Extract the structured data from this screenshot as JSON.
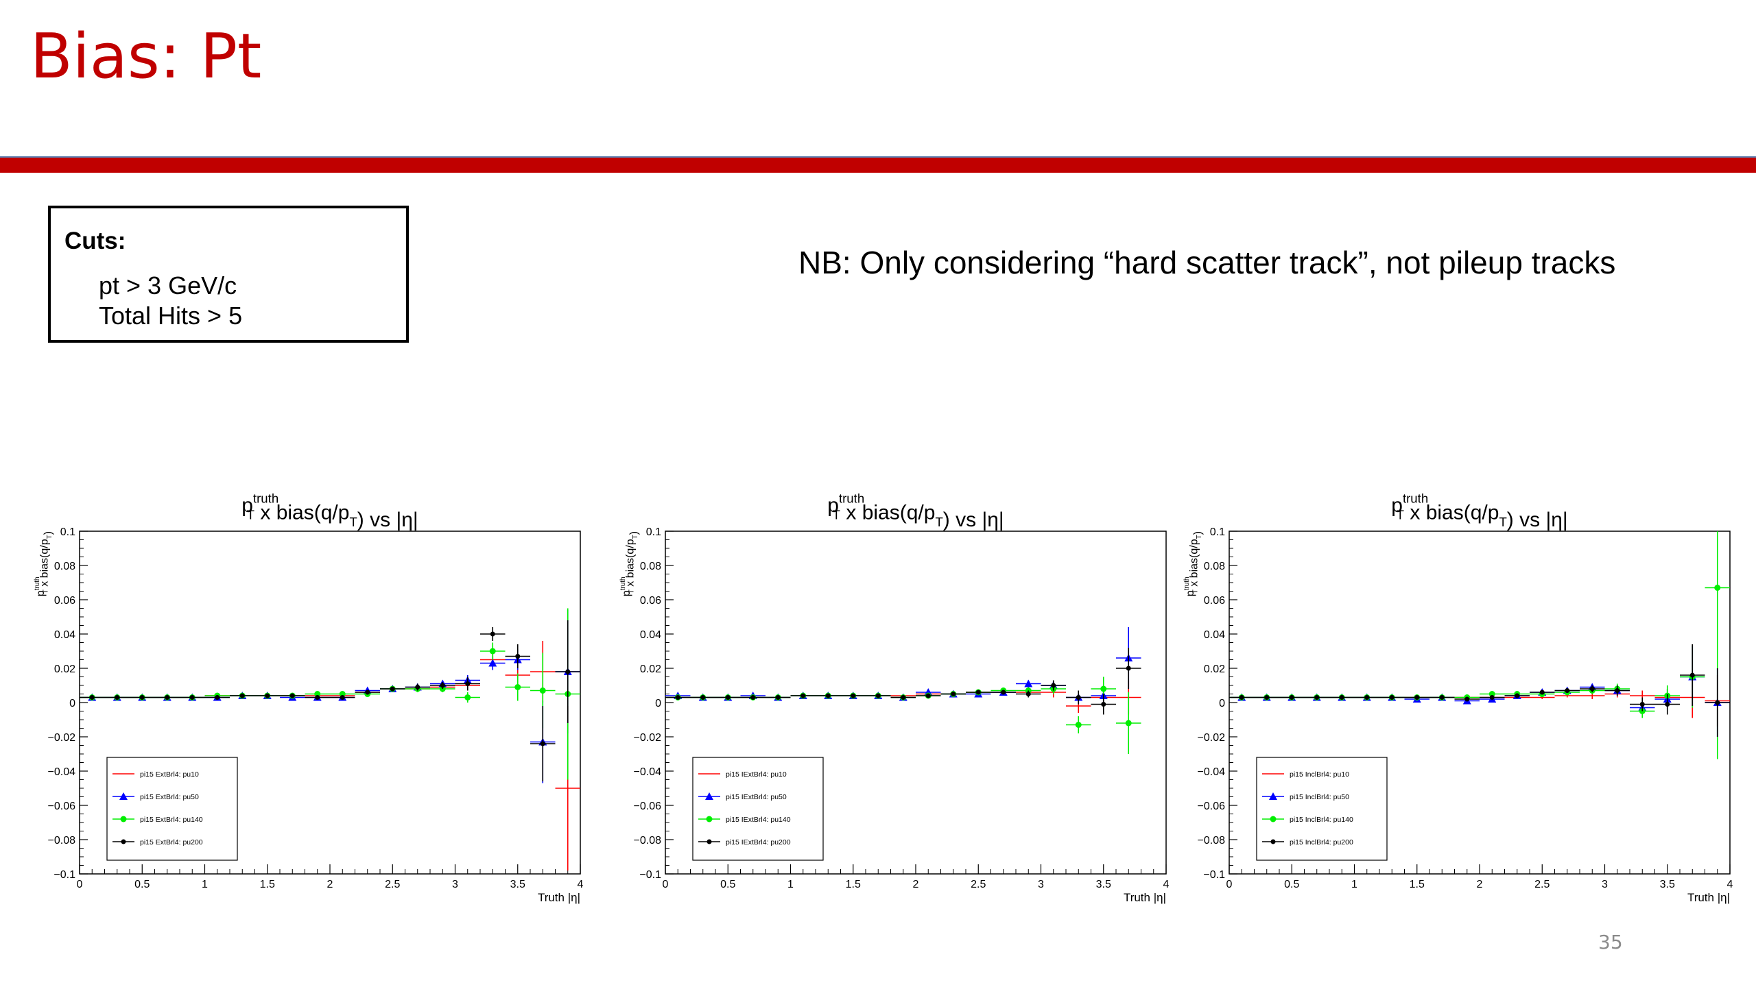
{
  "slide": {
    "title": "Bias: Pt",
    "cuts_title": "Cuts:",
    "cuts": [
      "pt > 3 GeV/c",
      "Total Hits > 5"
    ],
    "note": "NB: Only considering “hard scatter track”, not pileup tracks",
    "page_number": "35"
  },
  "colors": {
    "title": "#c00000",
    "bar": "#c00000",
    "pu10": "#ff0000",
    "pu50": "#0000ff",
    "pu140": "#00ee00",
    "pu200": "#000000"
  },
  "chart_data": [
    {
      "type": "scatter",
      "title": "p_T^truth x bias(q/p_T) vs |η|",
      "xlabel": "Truth |η|",
      "ylabel": "p_T^truth x bias(q/p_T)",
      "xlim": [
        0,
        4
      ],
      "ylim": [
        -0.1,
        0.1
      ],
      "xticks": [
        "0",
        "0.5",
        "1",
        "1.5",
        "2",
        "2.5",
        "3",
        "3.5",
        "4"
      ],
      "yticks": [
        "−0.1",
        "−0.08",
        "−0.06",
        "−0.04",
        "−0.02",
        "0",
        "0.02",
        "0.04",
        "0.06",
        "0.08",
        "0.1"
      ],
      "legend_position": "bottom-left",
      "series": [
        {
          "name": "pi15 ExtBrl4: pu10",
          "color": "#ff0000",
          "marker": "none",
          "x": [
            0.1,
            0.3,
            0.5,
            0.7,
            0.9,
            1.1,
            1.3,
            1.5,
            1.7,
            1.9,
            2.1,
            2.3,
            2.5,
            2.7,
            2.9,
            3.1,
            3.3,
            3.5,
            3.7,
            3.9
          ],
          "y": [
            0.003,
            0.003,
            0.003,
            0.003,
            0.003,
            0.004,
            0.004,
            0.004,
            0.004,
            0.004,
            0.004,
            0.006,
            0.008,
            0.008,
            0.009,
            0.01,
            0.025,
            0.016,
            0.018,
            -0.05
          ],
          "err": [
            0.001,
            0.001,
            0.001,
            0.001,
            0.001,
            0.001,
            0.001,
            0.001,
            0.001,
            0.001,
            0.001,
            0.001,
            0.001,
            0.002,
            0.002,
            0.003,
            0.004,
            0.006,
            0.018,
            0.048
          ]
        },
        {
          "name": "pi15 ExtBrl4: pu50",
          "color": "#0000ff",
          "marker": "triangle",
          "x": [
            0.1,
            0.3,
            0.5,
            0.7,
            0.9,
            1.1,
            1.3,
            1.5,
            1.7,
            1.9,
            2.1,
            2.3,
            2.5,
            2.7,
            2.9,
            3.1,
            3.3,
            3.5,
            3.7,
            3.9
          ],
          "y": [
            0.003,
            0.003,
            0.003,
            0.003,
            0.003,
            0.003,
            0.004,
            0.004,
            0.003,
            0.003,
            0.003,
            0.007,
            0.008,
            0.009,
            0.011,
            0.013,
            0.023,
            0.025,
            -0.023,
            0.018
          ],
          "err": [
            0.001,
            0.001,
            0.001,
            0.001,
            0.001,
            0.001,
            0.001,
            0.001,
            0.001,
            0.001,
            0.001,
            0.001,
            0.001,
            0.002,
            0.002,
            0.003,
            0.004,
            0.006,
            0.024,
            0.036
          ]
        },
        {
          "name": "pi15 ExtBrl4: pu140",
          "color": "#00ee00",
          "marker": "circle",
          "x": [
            0.1,
            0.3,
            0.5,
            0.7,
            0.9,
            1.1,
            1.3,
            1.5,
            1.7,
            1.9,
            2.1,
            2.3,
            2.5,
            2.7,
            2.9,
            3.1,
            3.3,
            3.5,
            3.7,
            3.9
          ],
          "y": [
            0.003,
            0.003,
            0.003,
            0.003,
            0.003,
            0.004,
            0.004,
            0.004,
            0.004,
            0.005,
            0.005,
            0.005,
            0.008,
            0.008,
            0.008,
            0.003,
            0.03,
            0.009,
            0.007,
            0.005
          ],
          "err": [
            0.001,
            0.001,
            0.001,
            0.001,
            0.001,
            0.001,
            0.001,
            0.001,
            0.001,
            0.001,
            0.001,
            0.001,
            0.001,
            0.002,
            0.002,
            0.003,
            0.005,
            0.008,
            0.022,
            0.05
          ]
        },
        {
          "name": "pi15 ExtBrl4: pu200",
          "color": "#000000",
          "marker": "cross",
          "x": [
            0.1,
            0.3,
            0.5,
            0.7,
            0.9,
            1.1,
            1.3,
            1.5,
            1.7,
            1.9,
            2.1,
            2.3,
            2.5,
            2.7,
            2.9,
            3.1,
            3.3,
            3.5,
            3.7,
            3.9
          ],
          "y": [
            0.003,
            0.003,
            0.003,
            0.003,
            0.003,
            0.003,
            0.004,
            0.004,
            0.004,
            0.003,
            0.003,
            0.006,
            0.008,
            0.009,
            0.01,
            0.011,
            0.04,
            0.027,
            -0.024,
            0.018
          ],
          "err": [
            0.001,
            0.001,
            0.001,
            0.001,
            0.001,
            0.001,
            0.001,
            0.001,
            0.001,
            0.001,
            0.001,
            0.001,
            0.001,
            0.002,
            0.002,
            0.004,
            0.004,
            0.007,
            0.022,
            0.03
          ]
        }
      ]
    },
    {
      "type": "scatter",
      "title": "p_T^truth x bias(q/p_T) vs |η|",
      "xlabel": "Truth |η|",
      "ylabel": "p_T^truth x bias(q/p_T)",
      "xlim": [
        0,
        4
      ],
      "ylim": [
        -0.1,
        0.1
      ],
      "xticks": [
        "0",
        "0.5",
        "1",
        "1.5",
        "2",
        "2.5",
        "3",
        "3.5",
        "4"
      ],
      "yticks": [
        "−0.1",
        "−0.08",
        "−0.06",
        "−0.04",
        "−0.02",
        "0",
        "0.02",
        "0.04",
        "0.06",
        "0.08",
        "0.1"
      ],
      "legend_position": "bottom-left",
      "series": [
        {
          "name": "pi15 IExtBrl4: pu10",
          "color": "#ff0000",
          "marker": "none",
          "x": [
            0.1,
            0.3,
            0.5,
            0.7,
            0.9,
            1.1,
            1.3,
            1.5,
            1.7,
            1.9,
            2.1,
            2.3,
            2.5,
            2.7,
            2.9,
            3.1,
            3.3,
            3.5,
            3.7
          ],
          "y": [
            0.003,
            0.003,
            0.003,
            0.003,
            0.003,
            0.004,
            0.004,
            0.004,
            0.004,
            0.004,
            0.005,
            0.005,
            0.006,
            0.006,
            0.006,
            0.006,
            -0.002,
            0.003,
            0.003
          ],
          "err": [
            0.001,
            0.001,
            0.001,
            0.001,
            0.001,
            0.001,
            0.001,
            0.001,
            0.001,
            0.001,
            0.001,
            0.001,
            0.001,
            0.001,
            0.002,
            0.003,
            0.004,
            0.006,
            0.01
          ]
        },
        {
          "name": "pi15 IExtBrl4: pu50",
          "color": "#0000ff",
          "marker": "triangle",
          "x": [
            0.1,
            0.3,
            0.5,
            0.7,
            0.9,
            1.1,
            1.3,
            1.5,
            1.7,
            1.9,
            2.1,
            2.3,
            2.5,
            2.7,
            2.9,
            3.1,
            3.3,
            3.5,
            3.7
          ],
          "y": [
            0.004,
            0.003,
            0.003,
            0.004,
            0.003,
            0.004,
            0.004,
            0.004,
            0.004,
            0.003,
            0.006,
            0.005,
            0.005,
            0.006,
            0.011,
            0.01,
            0.003,
            0.004,
            0.026
          ],
          "err": [
            0.001,
            0.001,
            0.001,
            0.001,
            0.001,
            0.001,
            0.001,
            0.001,
            0.001,
            0.001,
            0.001,
            0.001,
            0.001,
            0.001,
            0.002,
            0.003,
            0.004,
            0.006,
            0.018
          ]
        },
        {
          "name": "pi15 IExtBrl4: pu140",
          "color": "#00ee00",
          "marker": "circle",
          "x": [
            0.1,
            0.3,
            0.5,
            0.7,
            0.9,
            1.1,
            1.3,
            1.5,
            1.7,
            1.9,
            2.1,
            2.3,
            2.5,
            2.7,
            2.9,
            3.1,
            3.3,
            3.5,
            3.7
          ],
          "y": [
            0.003,
            0.003,
            0.003,
            0.003,
            0.003,
            0.004,
            0.004,
            0.004,
            0.004,
            0.003,
            0.004,
            0.005,
            0.006,
            0.007,
            0.007,
            0.008,
            -0.013,
            0.008,
            -0.012
          ],
          "err": [
            0.001,
            0.001,
            0.001,
            0.001,
            0.001,
            0.001,
            0.001,
            0.001,
            0.001,
            0.001,
            0.001,
            0.001,
            0.001,
            0.001,
            0.002,
            0.003,
            0.005,
            0.007,
            0.018
          ]
        },
        {
          "name": "pi15 IExtBrl4: pu200",
          "color": "#000000",
          "marker": "cross",
          "x": [
            0.1,
            0.3,
            0.5,
            0.7,
            0.9,
            1.1,
            1.3,
            1.5,
            1.7,
            1.9,
            2.1,
            2.3,
            2.5,
            2.7,
            2.9,
            3.1,
            3.3,
            3.5,
            3.7
          ],
          "y": [
            0.003,
            0.003,
            0.003,
            0.003,
            0.003,
            0.004,
            0.004,
            0.004,
            0.004,
            0.003,
            0.004,
            0.005,
            0.006,
            0.006,
            0.005,
            0.01,
            0.003,
            -0.001,
            0.02
          ],
          "err": [
            0.001,
            0.001,
            0.001,
            0.001,
            0.001,
            0.001,
            0.001,
            0.001,
            0.001,
            0.001,
            0.001,
            0.001,
            0.001,
            0.001,
            0.002,
            0.003,
            0.004,
            0.006,
            0.012
          ]
        }
      ]
    },
    {
      "type": "scatter",
      "title": "p_T^truth x bias(q/p_T) vs |η|",
      "xlabel": "Truth |η|",
      "ylabel": "p_T^truth x bias(q/p_T)",
      "xlim": [
        0,
        4
      ],
      "ylim": [
        -0.1,
        0.1
      ],
      "xticks": [
        "0",
        "0.5",
        "1",
        "1.5",
        "2",
        "2.5",
        "3",
        "3.5",
        "4"
      ],
      "yticks": [
        "−0.1",
        "−0.08",
        "−0.06",
        "−0.04",
        "−0.02",
        "0",
        "0.02",
        "0.04",
        "0.06",
        "0.08",
        "0.1"
      ],
      "legend_position": "bottom-left",
      "series": [
        {
          "name": "pi15 InclBrl4: pu10",
          "color": "#ff0000",
          "marker": "none",
          "x": [
            0.1,
            0.3,
            0.5,
            0.7,
            0.9,
            1.1,
            1.3,
            1.5,
            1.7,
            1.9,
            2.1,
            2.3,
            2.5,
            2.7,
            2.9,
            3.1,
            3.3,
            3.5,
            3.7,
            3.9
          ],
          "y": [
            0.003,
            0.003,
            0.003,
            0.003,
            0.003,
            0.003,
            0.003,
            0.003,
            0.003,
            0.003,
            0.003,
            0.003,
            0.003,
            0.004,
            0.004,
            0.005,
            0.004,
            0.003,
            0.003,
            0.001
          ],
          "err": [
            0.001,
            0.001,
            0.001,
            0.001,
            0.001,
            0.001,
            0.001,
            0.001,
            0.001,
            0.001,
            0.001,
            0.001,
            0.001,
            0.001,
            0.002,
            0.002,
            0.003,
            0.005,
            0.012,
            0.015
          ]
        },
        {
          "name": "pi15 InclBrl4: pu50",
          "color": "#0000ff",
          "marker": "triangle",
          "x": [
            0.1,
            0.3,
            0.5,
            0.7,
            0.9,
            1.1,
            1.3,
            1.5,
            1.7,
            1.9,
            2.1,
            2.3,
            2.5,
            2.7,
            2.9,
            3.1,
            3.3,
            3.5,
            3.7,
            3.9
          ],
          "y": [
            0.003,
            0.003,
            0.003,
            0.003,
            0.003,
            0.003,
            0.003,
            0.002,
            0.003,
            0.001,
            0.002,
            0.004,
            0.006,
            0.007,
            0.009,
            0.007,
            -0.003,
            0.002,
            0.015,
            0.0
          ],
          "err": [
            0.001,
            0.001,
            0.001,
            0.001,
            0.001,
            0.001,
            0.001,
            0.001,
            0.001,
            0.001,
            0.001,
            0.001,
            0.001,
            0.001,
            0.002,
            0.003,
            0.004,
            0.006,
            0.018,
            0.02
          ]
        },
        {
          "name": "pi15 InclBrl4: pu140",
          "color": "#00ee00",
          "marker": "circle",
          "x": [
            0.1,
            0.3,
            0.5,
            0.7,
            0.9,
            1.1,
            1.3,
            1.5,
            1.7,
            1.9,
            2.1,
            2.3,
            2.5,
            2.7,
            2.9,
            3.1,
            3.3,
            3.5,
            3.7,
            3.9
          ],
          "y": [
            0.003,
            0.003,
            0.003,
            0.003,
            0.003,
            0.003,
            0.003,
            0.003,
            0.003,
            0.003,
            0.005,
            0.005,
            0.005,
            0.006,
            0.007,
            0.008,
            -0.005,
            0.004,
            0.015,
            0.067
          ],
          "err": [
            0.001,
            0.001,
            0.001,
            0.001,
            0.001,
            0.001,
            0.001,
            0.001,
            0.001,
            0.001,
            0.001,
            0.001,
            0.001,
            0.001,
            0.002,
            0.003,
            0.004,
            0.006,
            0.018,
            0.1
          ]
        },
        {
          "name": "pi15 InclBrl4: pu200",
          "color": "#000000",
          "marker": "cross",
          "x": [
            0.1,
            0.3,
            0.5,
            0.7,
            0.9,
            1.1,
            1.3,
            1.5,
            1.7,
            1.9,
            2.1,
            2.3,
            2.5,
            2.7,
            2.9,
            3.1,
            3.3,
            3.5,
            3.7,
            3.9
          ],
          "y": [
            0.003,
            0.003,
            0.003,
            0.003,
            0.003,
            0.003,
            0.003,
            0.003,
            0.003,
            0.002,
            0.003,
            0.004,
            0.006,
            0.007,
            0.008,
            0.007,
            -0.001,
            -0.001,
            0.016,
            0.0
          ],
          "err": [
            0.001,
            0.001,
            0.001,
            0.001,
            0.001,
            0.001,
            0.001,
            0.001,
            0.001,
            0.001,
            0.001,
            0.001,
            0.001,
            0.001,
            0.002,
            0.003,
            0.004,
            0.006,
            0.018,
            0.02
          ]
        }
      ]
    }
  ]
}
